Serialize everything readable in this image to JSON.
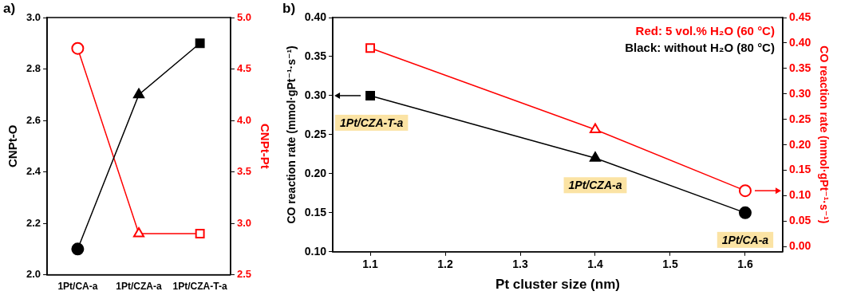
{
  "chart_data": [
    {
      "type": "line",
      "title": "a)",
      "categories": [
        "1Pt/CA-a",
        "1Pt/CZA-a",
        "1Pt/CZA-T-a"
      ],
      "y_label": "CNPt-O",
      "y2_label": "CNPt-Pt",
      "ylim": [
        2.0,
        3.0
      ],
      "yticks": [
        {
          "value": 2,
          "label": "2.0"
        },
        2.2,
        2.4,
        2.6,
        2.8,
        {
          "value": 3,
          "label": "3.0"
        }
      ],
      "y2lim": [
        2.5,
        5.0
      ],
      "y2ticks": [
        2.5,
        {
          "value": 3,
          "label": "3.0"
        },
        3.5,
        {
          "value": 4,
          "label": "4.0"
        },
        4.5,
        {
          "value": 5,
          "label": "5.0"
        }
      ],
      "grid": false,
      "series": [
        {
          "color": "#000000",
          "values": [
            2.1,
            2.7,
            2.9
          ],
          "marker": [
            "circle",
            "triangle",
            "square"
          ]
        },
        {
          "color": "#ff0000",
          "values": [
            4.7,
            2.9,
            2.9
          ],
          "axis": "y2",
          "marker": [
            "circle",
            "triangle",
            "square"
          ]
        }
      ]
    },
    {
      "type": "line",
      "title": "b)",
      "x_label": "Pt cluster size (nm)",
      "y_label": "CO reaction rate (mmol·gPt⁻¹·s⁻¹)",
      "y2_label": "CO reaction rate (mmol·gPt⁻¹·s⁻¹)",
      "x": [
        1.1,
        1.4,
        1.6
      ],
      "xlim": [
        1.05,
        1.65
      ],
      "xticks": [
        1.1,
        1.2,
        1.3,
        1.4,
        1.5,
        1.6
      ],
      "ylim": [
        0.1,
        0.4
      ],
      "yticks": [
        {
          "value": 0.1,
          "label": "0.10"
        },
        0.15,
        {
          "value": 0.2,
          "label": "0.20"
        },
        0.25,
        {
          "value": 0.3,
          "label": "0.30"
        },
        0.35,
        {
          "value": 0.4,
          "label": "0.40"
        }
      ],
      "y2lim": [
        -0.01,
        0.45
      ],
      "y2ticks": [
        {
          "value": 0,
          "label": "0.00"
        },
        0.05,
        {
          "value": 0.1,
          "label": "0.10"
        },
        0.15,
        {
          "value": 0.2,
          "label": "0.20"
        },
        0.25,
        {
          "value": 0.3,
          "label": "0.30"
        },
        0.35,
        {
          "value": 0.4,
          "label": "0.40"
        },
        0.45
      ],
      "grid": false,
      "legend": "upper right",
      "point_labels": [
        "1Pt/CZA-T-a",
        "1Pt/CZA-a",
        "1Pt/CA-a"
      ],
      "series": [
        {
          "name": "Red: 5 vol.% H₂O (60 °C)",
          "color": "#ff0000",
          "values": [
            0.39,
            0.23,
            0.11
          ],
          "axis": "y2",
          "marker": [
            "square",
            "triangle",
            "circle"
          ]
        },
        {
          "name": "Black: without H₂O (80 °C)",
          "color": "#000000",
          "values": [
            0.3,
            0.22,
            0.15
          ],
          "marker": [
            "square",
            "triangle",
            "circle"
          ]
        }
      ]
    }
  ]
}
